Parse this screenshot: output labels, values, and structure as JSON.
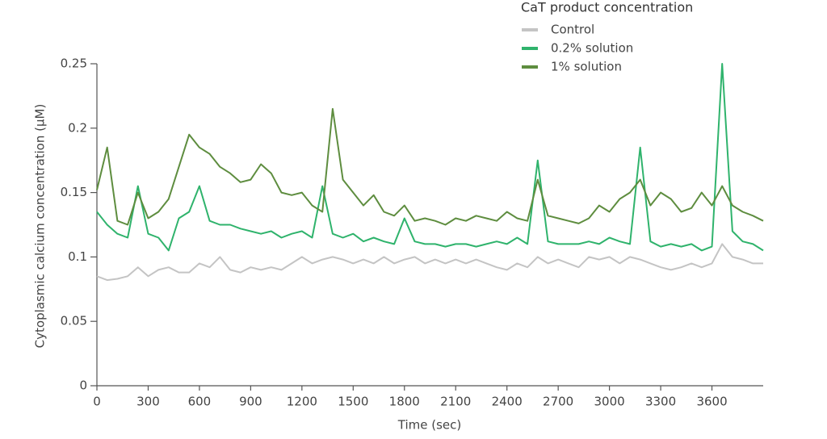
{
  "chart_data": {
    "type": "line",
    "x_label": "Time (sec)",
    "y_label": "Cytoplasmic calcium concentration (μM)",
    "legend_title": "CaT product concentration",
    "legend_position": "top-right",
    "xlim": [
      0,
      3900
    ],
    "xticks": [
      0,
      300,
      600,
      900,
      1200,
      1500,
      1800,
      2100,
      2400,
      2700,
      3000,
      3300,
      3600
    ],
    "ylim": [
      0,
      0.25
    ],
    "yticks": [
      0,
      0.05,
      0.1,
      0.15,
      0.2,
      0.25
    ],
    "x": [
      0,
      60,
      120,
      180,
      240,
      300,
      360,
      420,
      480,
      540,
      600,
      660,
      720,
      780,
      840,
      900,
      960,
      1020,
      1080,
      1140,
      1200,
      1260,
      1320,
      1380,
      1440,
      1500,
      1560,
      1620,
      1680,
      1740,
      1800,
      1860,
      1920,
      1980,
      2040,
      2100,
      2160,
      2220,
      2280,
      2340,
      2400,
      2460,
      2520,
      2580,
      2640,
      2700,
      2760,
      2820,
      2880,
      2940,
      3000,
      3060,
      3120,
      3180,
      3240,
      3300,
      3360,
      3420,
      3480,
      3540,
      3600,
      3660,
      3720,
      3780,
      3840,
      3900
    ],
    "series": [
      {
        "name": "Control",
        "color": "#c4c4c4",
        "values": [
          0.085,
          0.082,
          0.083,
          0.085,
          0.092,
          0.085,
          0.09,
          0.092,
          0.088,
          0.088,
          0.095,
          0.092,
          0.1,
          0.09,
          0.088,
          0.092,
          0.09,
          0.092,
          0.09,
          0.095,
          0.1,
          0.095,
          0.098,
          0.1,
          0.098,
          0.095,
          0.098,
          0.095,
          0.1,
          0.095,
          0.098,
          0.1,
          0.095,
          0.098,
          0.095,
          0.098,
          0.095,
          0.098,
          0.095,
          0.092,
          0.09,
          0.095,
          0.092,
          0.1,
          0.095,
          0.098,
          0.095,
          0.092,
          0.1,
          0.098,
          0.1,
          0.095,
          0.1,
          0.098,
          0.095,
          0.092,
          0.09,
          0.092,
          0.095,
          0.092,
          0.095,
          0.11,
          0.1,
          0.098,
          0.095,
          0.095
        ]
      },
      {
        "name": "0.2% solution",
        "color": "#2fb36c",
        "values": [
          0.135,
          0.125,
          0.118,
          0.115,
          0.155,
          0.118,
          0.115,
          0.105,
          0.13,
          0.135,
          0.155,
          0.128,
          0.125,
          0.125,
          0.122,
          0.12,
          0.118,
          0.12,
          0.115,
          0.118,
          0.12,
          0.115,
          0.155,
          0.118,
          0.115,
          0.118,
          0.112,
          0.115,
          0.112,
          0.11,
          0.13,
          0.112,
          0.11,
          0.11,
          0.108,
          0.11,
          0.11,
          0.108,
          0.11,
          0.112,
          0.11,
          0.115,
          0.11,
          0.175,
          0.112,
          0.11,
          0.11,
          0.11,
          0.112,
          0.11,
          0.115,
          0.112,
          0.11,
          0.185,
          0.112,
          0.108,
          0.11,
          0.108,
          0.11,
          0.105,
          0.108,
          0.25,
          0.12,
          0.112,
          0.11,
          0.105
        ]
      },
      {
        "name": "1% solution",
        "color": "#5e8d3f",
        "values": [
          0.152,
          0.185,
          0.128,
          0.125,
          0.15,
          0.13,
          0.135,
          0.145,
          0.17,
          0.195,
          0.185,
          0.18,
          0.17,
          0.165,
          0.158,
          0.16,
          0.172,
          0.165,
          0.15,
          0.148,
          0.15,
          0.14,
          0.135,
          0.215,
          0.16,
          0.15,
          0.14,
          0.148,
          0.135,
          0.132,
          0.14,
          0.128,
          0.13,
          0.128,
          0.125,
          0.13,
          0.128,
          0.132,
          0.13,
          0.128,
          0.135,
          0.13,
          0.128,
          0.16,
          0.132,
          0.13,
          0.128,
          0.126,
          0.13,
          0.14,
          0.135,
          0.145,
          0.15,
          0.16,
          0.14,
          0.15,
          0.145,
          0.135,
          0.138,
          0.15,
          0.14,
          0.155,
          0.14,
          0.135,
          0.132,
          0.128
        ]
      }
    ]
  }
}
